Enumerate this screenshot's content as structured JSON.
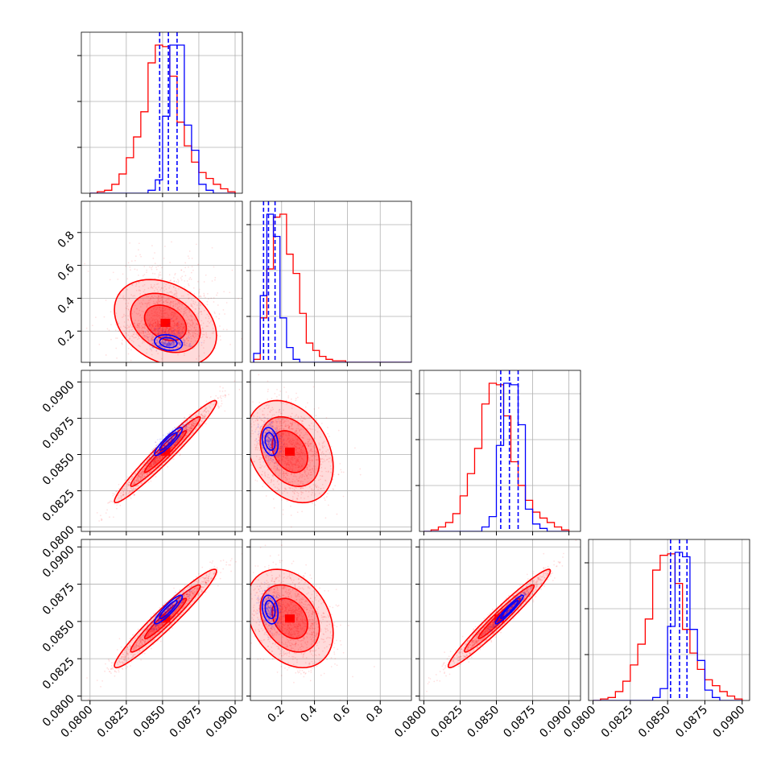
{
  "chart_data": {
    "type": "corner",
    "parameters": [
      {
        "ticks": [
          0.08,
          0.0825,
          0.085,
          0.0875,
          0.09
        ],
        "tick_labels": [
          "0.0800",
          "0.0825",
          "0.0850",
          "0.0875",
          "0.0900"
        ],
        "range": [
          0.0794,
          0.0905
        ]
      },
      {
        "ticks": [
          0.2,
          0.4,
          0.6,
          0.8
        ],
        "tick_labels": [
          "0.2",
          "0.4",
          "0.6",
          "0.8"
        ],
        "range": [
          0.01,
          0.99
        ]
      },
      {
        "ticks": [
          0.08,
          0.0825,
          0.085,
          0.0875,
          0.09
        ],
        "tick_labels": [
          "0.0800",
          "0.0825",
          "0.0850",
          "0.0875",
          "0.0900"
        ],
        "range": [
          0.0797,
          0.0908
        ]
      },
      {
        "ticks": [
          0.08,
          0.0825,
          0.085,
          0.0875,
          0.09
        ],
        "tick_labels": [
          "0.0800",
          "0.0825",
          "0.0850",
          "0.0875",
          "0.0900"
        ],
        "range": [
          0.0797,
          0.0905
        ]
      }
    ],
    "series": [
      {
        "color": "#0000ff",
        "means": [
          0.0854,
          0.13,
          0.0859,
          0.0858
        ],
        "stds": [
          0.0006,
          0.03,
          0.0006,
          0.0006
        ],
        "quantiles": [
          [
            0.0848,
            0.0854,
            0.086
          ],
          [
            0.09,
            0.12,
            0.16
          ],
          [
            0.0853,
            0.0859,
            0.0865
          ],
          [
            0.0852,
            0.0858,
            0.0863
          ]
        ],
        "histograms": [
          {
            "edges_start": 0.08,
            "bin_width": 0.0005,
            "counts": [
              0,
              0,
              0,
              0,
              0,
              0,
              0,
              0,
              0.02,
              0.09,
              0.52,
              1.0,
              1.0,
              0.46,
              0.29,
              0.06,
              0.02,
              0,
              0,
              0
            ]
          },
          {
            "edges_start": 0.03,
            "bin_width": 0.04,
            "counts": [
              0.06,
              0.45,
              1.0,
              0.85,
              0.3,
              0.1,
              0.02,
              0.0,
              0,
              0,
              0,
              0,
              0,
              0,
              0,
              0,
              0,
              0,
              0,
              0,
              0,
              0,
              0,
              0
            ]
          },
          {
            "edges_start": 0.08,
            "bin_width": 0.0005,
            "counts": [
              0,
              0,
              0,
              0,
              0,
              0,
              0,
              0,
              0.03,
              0.1,
              0.58,
              1.0,
              0.99,
              0.72,
              0.15,
              0.05,
              0.02,
              0,
              0,
              0
            ]
          },
          {
            "edges_start": 0.08,
            "bin_width": 0.0005,
            "counts": [
              0,
              0,
              0,
              0,
              0,
              0,
              0,
              0,
              0.02,
              0.08,
              0.5,
              1.0,
              0.97,
              0.48,
              0.27,
              0.07,
              0.02,
              0,
              0,
              0
            ]
          }
        ],
        "correlations": [
          [
            1,
            -0.2,
            0.9,
            0.9
          ],
          [
            -0.2,
            1,
            -0.25,
            -0.25
          ],
          [
            0.9,
            -0.25,
            1,
            0.95
          ],
          [
            0.9,
            -0.25,
            0.95,
            1
          ]
        ]
      },
      {
        "color": "#ff0000",
        "means": [
          0.0852,
          0.25,
          0.0852,
          0.0852
        ],
        "stds": [
          0.0016,
          0.12,
          0.0016,
          0.0015
        ],
        "histograms": [
          {
            "edges_start": 0.08,
            "bin_width": 0.0005,
            "counts": [
              0.0,
              0.01,
              0.02,
              0.06,
              0.13,
              0.24,
              0.38,
              0.55,
              0.88,
              1.0,
              0.99,
              0.79,
              0.48,
              0.32,
              0.21,
              0.14,
              0.1,
              0.06,
              0.03,
              0.01
            ]
          },
          {
            "edges_start": 0.03,
            "bin_width": 0.04,
            "counts": [
              0.02,
              0.3,
              0.63,
              0.98,
              1.0,
              0.73,
              0.6,
              0.33,
              0.13,
              0.08,
              0.04,
              0.02,
              0.01,
              0.01,
              0.0,
              0.0,
              0.0,
              0,
              0,
              0,
              0,
              0,
              0,
              0
            ]
          },
          {
            "edges_start": 0.08,
            "bin_width": 0.0005,
            "counts": [
              0.0,
              0.01,
              0.03,
              0.06,
              0.12,
              0.24,
              0.39,
              0.56,
              0.86,
              1.0,
              0.99,
              0.78,
              0.47,
              0.31,
              0.21,
              0.13,
              0.09,
              0.06,
              0.03,
              0.01
            ]
          },
          {
            "edges_start": 0.08,
            "bin_width": 0.0005,
            "counts": [
              0.0,
              0.01,
              0.02,
              0.06,
              0.13,
              0.24,
              0.38,
              0.55,
              0.88,
              0.98,
              0.99,
              0.79,
              0.48,
              0.32,
              0.21,
              0.14,
              0.1,
              0.06,
              0.03,
              0.01
            ]
          }
        ],
        "correlations": [
          [
            1,
            -0.3,
            0.97,
            0.96
          ],
          [
            -0.3,
            1,
            -0.3,
            -0.3
          ],
          [
            0.97,
            -0.3,
            1,
            0.97
          ],
          [
            0.96,
            -0.3,
            0.97,
            1
          ]
        ]
      }
    ],
    "grid": true,
    "legend": "none"
  }
}
